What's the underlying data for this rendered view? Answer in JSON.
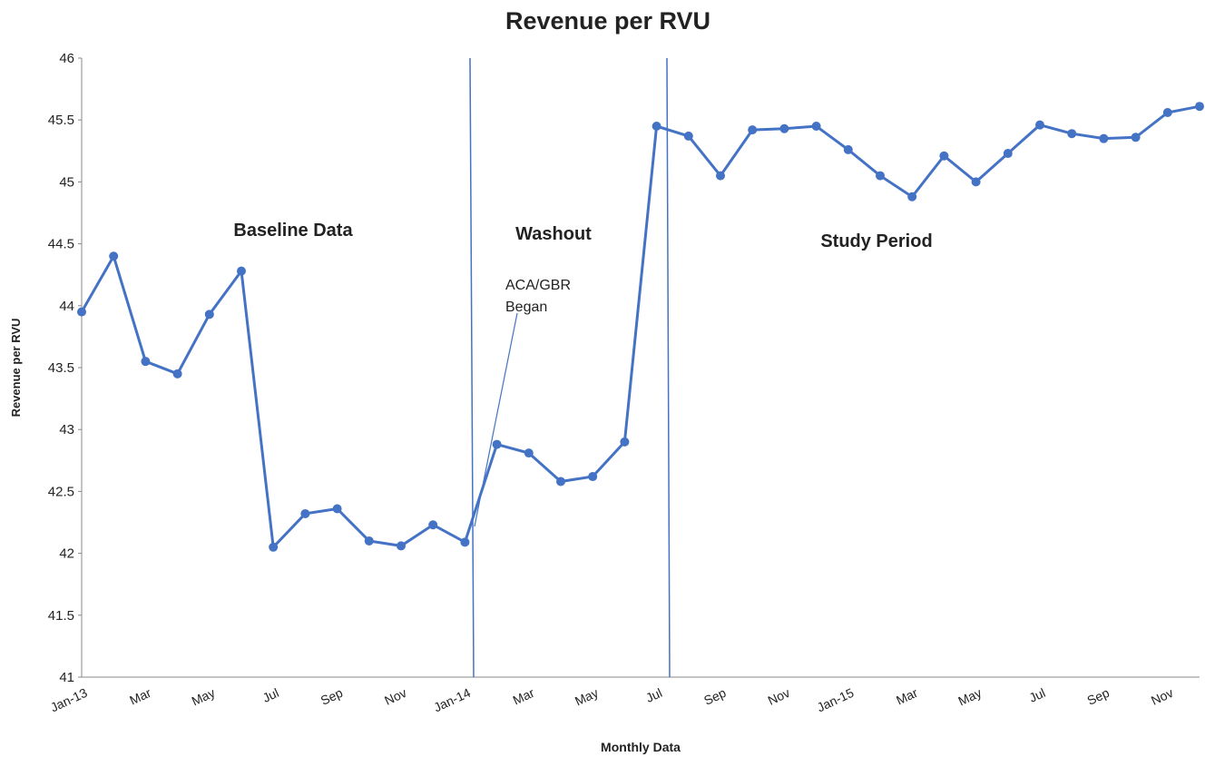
{
  "chart_data": {
    "type": "line",
    "title": "Revenue per RVU",
    "x_label": "Monthly Data",
    "y_label": "Revenue per RVU",
    "categories": [
      "Jan-13",
      null,
      "Mar",
      null,
      "May",
      null,
      "Jul",
      null,
      "Sep",
      null,
      "Nov",
      null,
      "Jan-14",
      null,
      "Mar",
      null,
      "May",
      null,
      "Jul",
      null,
      "Sep",
      null,
      "Nov",
      null,
      "Jan-15",
      null,
      "Mar",
      null,
      "May",
      null,
      "Jul",
      null,
      "Sep",
      null,
      "Nov",
      null
    ],
    "series": [
      {
        "name": "Revenue per RVU",
        "color": "#4472c4",
        "values": [
          43.95,
          44.4,
          43.55,
          43.45,
          43.93,
          44.28,
          42.05,
          42.32,
          42.36,
          42.1,
          42.06,
          42.23,
          42.09,
          42.88,
          42.81,
          42.58,
          42.62,
          42.9,
          45.45,
          45.37,
          45.05,
          45.42,
          45.43,
          45.45,
          45.26,
          45.05,
          44.88,
          45.21,
          45.0,
          45.23,
          45.46,
          45.39,
          45.35,
          45.36,
          45.56,
          45.61
        ]
      }
    ],
    "ylim": [
      41,
      46
    ],
    "yticks": [
      41,
      41.5,
      42,
      42.5,
      43,
      43.5,
      44,
      44.5,
      45,
      45.5,
      46
    ],
    "annotations": [
      "Baseline Data",
      "Washout",
      "Study Period",
      "ACA/GBR",
      "Began"
    ],
    "grid": false
  }
}
